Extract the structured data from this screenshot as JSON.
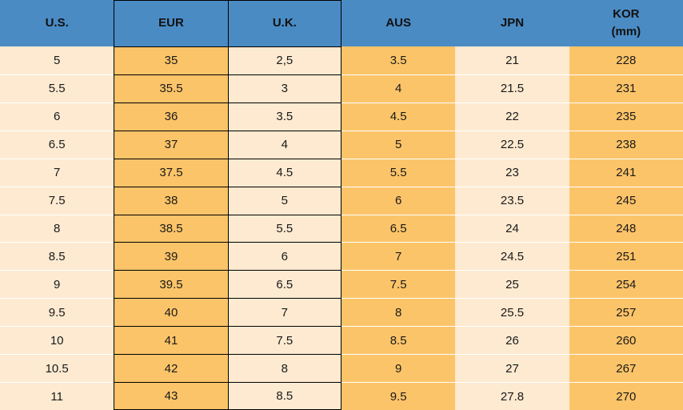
{
  "colors": {
    "header_blue": "#4A8BC4",
    "cream": "#FDEAD1",
    "orange": "#FCC469",
    "outline_black": "#000000",
    "row_separator": "#FFFFFF",
    "text": "#1A1A1A"
  },
  "chart_data": {
    "type": "table",
    "columns": [
      {
        "key": "us",
        "label": "U.S.",
        "sublabel": "",
        "tone": "cream",
        "outlined": false
      },
      {
        "key": "eur",
        "label": "EUR",
        "sublabel": "",
        "tone": "orange",
        "outlined": true
      },
      {
        "key": "uk",
        "label": "U.K.",
        "sublabel": "",
        "tone": "cream",
        "outlined": true
      },
      {
        "key": "aus",
        "label": "AUS",
        "sublabel": "",
        "tone": "orange",
        "outlined": false
      },
      {
        "key": "jpn",
        "label": "JPN",
        "sublabel": "",
        "tone": "cream",
        "outlined": false
      },
      {
        "key": "kor",
        "label": "KOR",
        "sublabel": "(mm)",
        "tone": "orange",
        "outlined": false
      }
    ],
    "rows": [
      [
        "5",
        "35",
        "2,5",
        "3.5",
        "21",
        "228"
      ],
      [
        "5.5",
        "35.5",
        "3",
        "4",
        "21.5",
        "231"
      ],
      [
        "6",
        "36",
        "3.5",
        "4.5",
        "22",
        "235"
      ],
      [
        "6.5",
        "37",
        "4",
        "5",
        "22.5",
        "238"
      ],
      [
        "7",
        "37.5",
        "4.5",
        "5.5",
        "23",
        "241"
      ],
      [
        "7.5",
        "38",
        "5",
        "6",
        "23.5",
        "245"
      ],
      [
        "8",
        "38.5",
        "5.5",
        "6.5",
        "24",
        "248"
      ],
      [
        "8.5",
        "39",
        "6",
        "7",
        "24.5",
        "251"
      ],
      [
        "9",
        "39.5",
        "6.5",
        "7.5",
        "25",
        "254"
      ],
      [
        "9.5",
        "40",
        "7",
        "8",
        "25.5",
        "257"
      ],
      [
        "10",
        "41",
        "7.5",
        "8.5",
        "26",
        "260"
      ],
      [
        "10.5",
        "42",
        "8",
        "9",
        "27",
        "267"
      ],
      [
        "11",
        "43",
        "8.5",
        "9.5",
        "27.8",
        "270"
      ]
    ]
  }
}
